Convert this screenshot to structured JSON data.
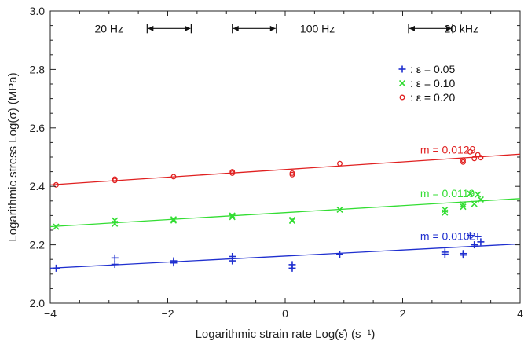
{
  "chart_data": {
    "type": "scatter",
    "xlabel": "Logarithmic strain rate Log(ε̇) (s⁻¹)",
    "ylabel": "Logarithmic stress Log(σ) (MPa)",
    "xlim": [
      -4,
      4
    ],
    "ylim": [
      2.0,
      3.0
    ],
    "x_ticks": [
      -4,
      -2,
      0,
      2,
      4
    ],
    "y_ticks": [
      2.0,
      2.2,
      2.4,
      2.6,
      2.8,
      3.0
    ],
    "x_tick_labels": [
      "−4",
      "−2",
      "0",
      "2",
      "4"
    ],
    "y_tick_labels": [
      "2.0",
      "2.2",
      "2.4",
      "2.6",
      "2.8",
      "3.0"
    ],
    "grid": false,
    "legend_position": "top-right",
    "frequency_labels": [
      {
        "text": "20 Hz",
        "x": -3.0,
        "y": 2.94
      },
      {
        "text": "100 Hz",
        "x": 0.55,
        "y": 2.94
      },
      {
        "text": "20 kHz",
        "x": 3.0,
        "y": 2.94
      }
    ],
    "frequency_ranges": [
      {
        "x1": -2.35,
        "x2": -1.6,
        "y": 2.94
      },
      {
        "x1": -0.9,
        "x2": -0.15,
        "y": 2.94
      },
      {
        "x1": 2.1,
        "x2": 2.85,
        "y": 2.94
      }
    ],
    "series": [
      {
        "name": ": ε = 0.05",
        "color": "#1f2fcf",
        "marker": "plus",
        "slope_label": "m = 0.0102",
        "slope_label_pos": {
          "x": 2.3,
          "y": 2.23
        },
        "fit": {
          "x": [
            -4,
            4
          ],
          "y": [
            2.12,
            2.203
          ]
        },
        "points": [
          {
            "x": -3.9,
            "y": 2.12
          },
          {
            "x": -2.9,
            "y": 2.155
          },
          {
            "x": -2.9,
            "y": 2.133
          },
          {
            "x": -1.9,
            "y": 2.145
          },
          {
            "x": -1.9,
            "y": 2.138
          },
          {
            "x": -0.9,
            "y": 2.16
          },
          {
            "x": -0.9,
            "y": 2.145
          },
          {
            "x": 0.12,
            "y": 2.132
          },
          {
            "x": 0.12,
            "y": 2.12
          },
          {
            "x": 0.93,
            "y": 2.168
          },
          {
            "x": 2.72,
            "y": 2.175
          },
          {
            "x": 2.72,
            "y": 2.168
          },
          {
            "x": 3.03,
            "y": 2.165
          },
          {
            "x": 3.03,
            "y": 2.17
          },
          {
            "x": 3.15,
            "y": 2.232
          },
          {
            "x": 3.22,
            "y": 2.2
          },
          {
            "x": 3.28,
            "y": 2.228
          },
          {
            "x": 3.33,
            "y": 2.21
          }
        ]
      },
      {
        "name": ": ε = 0.10",
        "color": "#33dd33",
        "marker": "x",
        "slope_label": "m = 0.0119",
        "slope_label_pos": {
          "x": 2.3,
          "y": 2.377
        },
        "fit": {
          "x": [
            -4,
            4
          ],
          "y": [
            2.262,
            2.358
          ]
        },
        "points": [
          {
            "x": -3.9,
            "y": 2.262
          },
          {
            "x": -2.9,
            "y": 2.283
          },
          {
            "x": -2.9,
            "y": 2.272
          },
          {
            "x": -1.9,
            "y": 2.287
          },
          {
            "x": -1.9,
            "y": 2.283
          },
          {
            "x": -0.9,
            "y": 2.3
          },
          {
            "x": -0.9,
            "y": 2.295
          },
          {
            "x": 0.12,
            "y": 2.285
          },
          {
            "x": 0.12,
            "y": 2.282
          },
          {
            "x": 0.93,
            "y": 2.32
          },
          {
            "x": 2.72,
            "y": 2.32
          },
          {
            "x": 2.72,
            "y": 2.31
          },
          {
            "x": 3.03,
            "y": 2.33
          },
          {
            "x": 3.03,
            "y": 2.338
          },
          {
            "x": 3.15,
            "y": 2.375
          },
          {
            "x": 3.22,
            "y": 2.34
          },
          {
            "x": 3.28,
            "y": 2.372
          },
          {
            "x": 3.33,
            "y": 2.355
          }
        ]
      },
      {
        "name": ": ε = 0.20",
        "color": "#e02020",
        "marker": "circle",
        "slope_label": "m = 0.0129",
        "slope_label_pos": {
          "x": 2.3,
          "y": 2.525
        },
        "fit": {
          "x": [
            -4,
            4
          ],
          "y": [
            2.405,
            2.51
          ]
        },
        "points": [
          {
            "x": -3.9,
            "y": 2.405
          },
          {
            "x": -2.9,
            "y": 2.425
          },
          {
            "x": -2.9,
            "y": 2.42
          },
          {
            "x": -1.9,
            "y": 2.433
          },
          {
            "x": -0.9,
            "y": 2.45
          },
          {
            "x": -0.9,
            "y": 2.445
          },
          {
            "x": 0.12,
            "y": 2.445
          },
          {
            "x": 0.12,
            "y": 2.44
          },
          {
            "x": 0.93,
            "y": 2.478
          },
          {
            "x": 3.03,
            "y": 2.49
          },
          {
            "x": 3.03,
            "y": 2.483
          },
          {
            "x": 3.15,
            "y": 2.518
          },
          {
            "x": 3.22,
            "y": 2.495
          },
          {
            "x": 3.28,
            "y": 2.508
          },
          {
            "x": 3.33,
            "y": 2.498
          }
        ]
      }
    ]
  }
}
